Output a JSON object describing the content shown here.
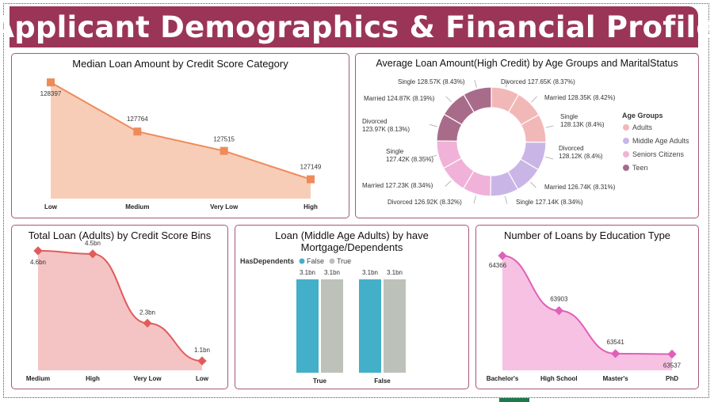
{
  "page": {
    "title": "Applicant Demographics & Financial Profile"
  },
  "colors": {
    "banner": "#9b3558",
    "border": "#a3587a"
  },
  "chart_data": [
    {
      "id": "median-loan",
      "type": "area",
      "title": "Median Loan Amount by Credit Score Category",
      "categories": [
        "Low",
        "Medium",
        "Very Low",
        "High"
      ],
      "values": [
        128397,
        127764,
        127515,
        127149
      ],
      "labels": [
        "128397",
        "127764",
        "127515",
        "127149"
      ],
      "ylim": [
        126900,
        128500
      ],
      "color": "#ef8a5a",
      "fill": "#f7cdb7"
    },
    {
      "id": "avg-loan-donut",
      "type": "pie",
      "title": "Average Loan Amount(High Credit) by Age Groups and MaritalStatus",
      "legend_title": "Age Groups",
      "legend": [
        {
          "name": "Adults",
          "color": "#f2b8b8"
        },
        {
          "name": "Middle Age Adults",
          "color": "#c9b6e6"
        },
        {
          "name": "Seniors Citizens",
          "color": "#f0b2d8"
        },
        {
          "name": "Teen",
          "color": "#a86c8a"
        }
      ],
      "slices": [
        {
          "label": "Divorced 127.65K (8.37%)",
          "group": "Adults",
          "value": 8.37
        },
        {
          "label": "Married 128.35K (8.42%)",
          "group": "Adults",
          "value": 8.42
        },
        {
          "label": "Single 128.13K (8.4%)",
          "group": "Adults",
          "value": 8.4
        },
        {
          "label": "Divorced 128.12K (8.4%)",
          "group": "Middle Age Adults",
          "value": 8.4
        },
        {
          "label": "Married 126.74K (8.31%)",
          "group": "Middle Age Adults",
          "value": 8.31
        },
        {
          "label": "Single 127.14K (8.34%)",
          "group": "Middle Age Adults",
          "value": 8.34
        },
        {
          "label": "Divorced 126.92K (8.32%)",
          "group": "Seniors Citizens",
          "value": 8.32
        },
        {
          "label": "Married 127.23K (8.34%)",
          "group": "Seniors Citizens",
          "value": 8.34
        },
        {
          "label": "Single 127.42K (8.35%)",
          "group": "Seniors Citizens",
          "value": 8.35
        },
        {
          "label": "Divorced 123.97K (8.13%)",
          "group": "Teen",
          "value": 8.13
        },
        {
          "label": "Married 124.87K (8.19%)",
          "group": "Teen",
          "value": 8.19
        },
        {
          "label": "Single 128.57K (8.43%)",
          "group": "Teen",
          "value": 8.43
        }
      ]
    },
    {
      "id": "total-loan-adults",
      "type": "area",
      "title": "Total Loan (Adults) by Credit Score Bins",
      "categories": [
        "Medium",
        "High",
        "Very Low",
        "Low"
      ],
      "values": [
        4.6,
        4.5,
        2.3,
        1.1
      ],
      "labels": [
        "4.6bn",
        "4.5bn",
        "2.3bn",
        "1.1bn"
      ],
      "ylim": [
        0.8,
        4.9
      ],
      "color": "#e05c5c",
      "fill": "#f4c4c4"
    },
    {
      "id": "loan-middle-age",
      "type": "bar",
      "title": "Loan (Middle Age Adults) by have Mortgage/Dependents",
      "legend_title": "HasDependents",
      "series": [
        {
          "name": "False",
          "color": "#43afc9",
          "values": [
            3.1,
            3.1
          ]
        },
        {
          "name": "True",
          "color": "#bcc1ba",
          "values": [
            3.1,
            3.1
          ]
        }
      ],
      "categories": [
        "True",
        "False"
      ],
      "labels": [
        "3.1bn",
        "3.1bn",
        "3.1bn",
        "3.1bn"
      ],
      "ylim": [
        0,
        3.6
      ]
    },
    {
      "id": "loans-by-education",
      "type": "area",
      "title": "Number of Loans by Education Type",
      "categories": [
        "Bachelor's",
        "High School",
        "Master's",
        "PhD"
      ],
      "values": [
        64366,
        63903,
        63541,
        63537
      ],
      "labels": [
        "64366",
        "63903",
        "63541",
        "63537"
      ],
      "ylim": [
        63400,
        64400
      ],
      "color": "#e060b8",
      "fill": "#f6c1e2"
    }
  ]
}
